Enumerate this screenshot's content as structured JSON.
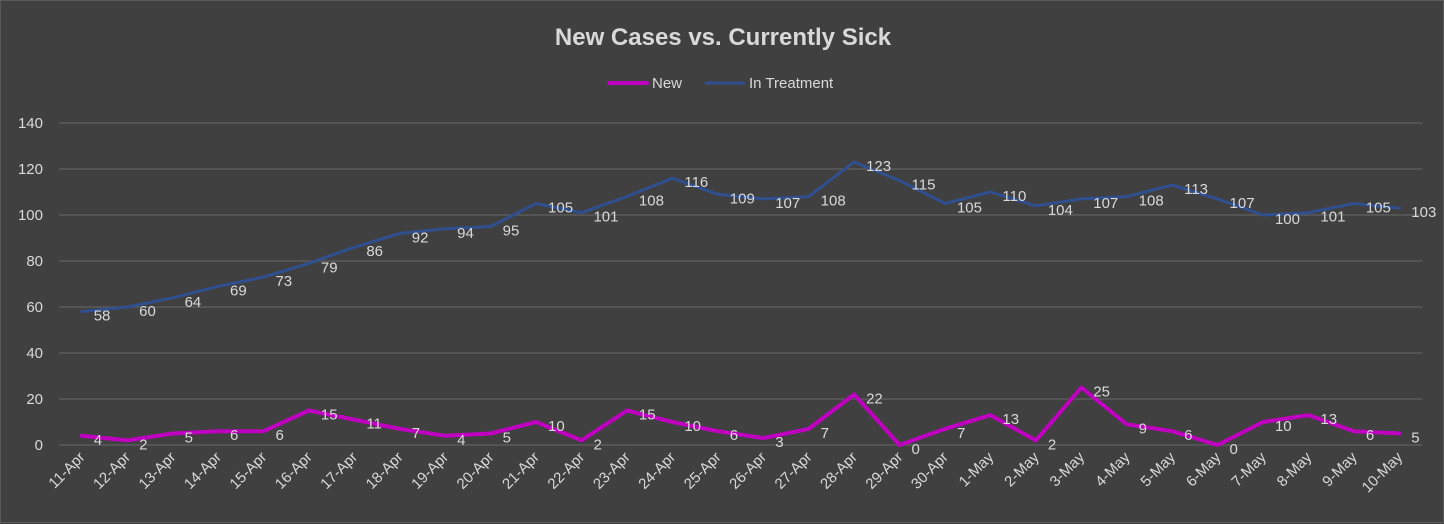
{
  "chart_data": {
    "type": "line",
    "title": "New Cases vs. Currently Sick",
    "xlabel": "",
    "ylabel": "",
    "ylim": [
      0,
      140
    ],
    "yticks": [
      0,
      20,
      40,
      60,
      80,
      100,
      120,
      140
    ],
    "grid": true,
    "legend_position": "top",
    "categories": [
      "11-Apr",
      "12-Apr",
      "13-Apr",
      "14-Apr",
      "15-Apr",
      "16-Apr",
      "17-Apr",
      "18-Apr",
      "19-Apr",
      "20-Apr",
      "21-Apr",
      "22-Apr",
      "23-Apr",
      "24-Apr",
      "25-Apr",
      "26-Apr",
      "27-Apr",
      "28-Apr",
      "29-Apr",
      "30-Apr",
      "1-May",
      "2-May",
      "3-May",
      "4-May",
      "5-May",
      "6-May",
      "7-May",
      "8-May",
      "9-May",
      "10-May"
    ],
    "series": [
      {
        "name": "New",
        "color": "#c000c0",
        "values": [
          4,
          2,
          5,
          6,
          6,
          15,
          11,
          7,
          4,
          5,
          10,
          2,
          15,
          10,
          6,
          3,
          7,
          22,
          0,
          7,
          13,
          2,
          25,
          9,
          6,
          0,
          10,
          13,
          6,
          5
        ]
      },
      {
        "name": "In Treatment",
        "color": "#2f4f8f",
        "values": [
          58,
          60,
          64,
          69,
          73,
          79,
          86,
          92,
          94,
          95,
          105,
          101,
          108,
          116,
          109,
          107,
          108,
          123,
          115,
          105,
          110,
          104,
          107,
          108,
          113,
          107,
          100,
          101,
          105,
          103
        ]
      }
    ],
    "colors": {
      "background": "#404040",
      "gridline": "#5a5a5a",
      "text": "#d9d9d9"
    }
  }
}
